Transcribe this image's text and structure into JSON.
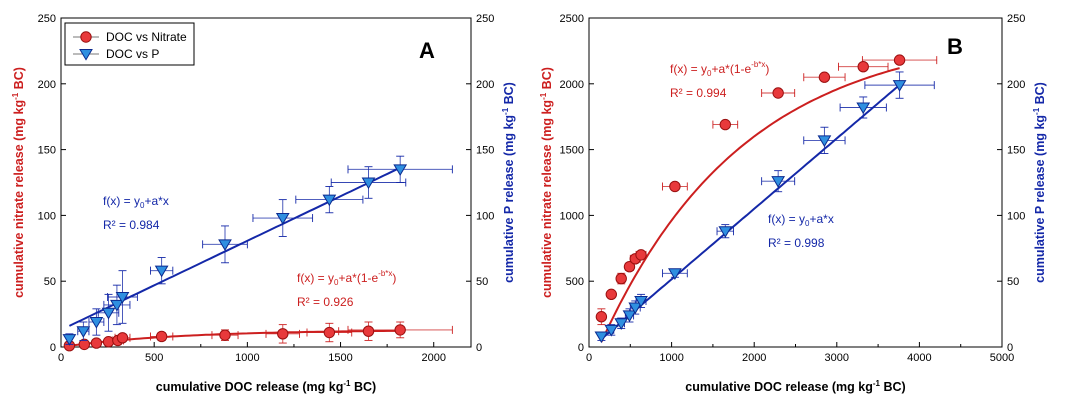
{
  "colors": {
    "nitrate": "#e8393b",
    "nitrate_edge": "#9a1010",
    "nitrate_line": "#cc1f1f",
    "p": "#2f8fe0",
    "p_edge": "#0b2a8f",
    "p_line": "#1428a8",
    "axis": "#000000",
    "errbar": "#4a4a4a"
  },
  "chart_data": [
    {
      "type": "scatter",
      "panel_label": "A",
      "xlabel": {
        "main": "cumulative DOC release (mg kg",
        "sup": "-1",
        "tail": " BC)"
      },
      "ylabel_left": {
        "main": "cumulative nitrate release (mg kg",
        "sup": "-1",
        "tail": " BC)"
      },
      "ylabel_right": {
        "main": "cumulative P release (mg kg",
        "sup": "-1",
        "tail": " BC)"
      },
      "xlim": [
        0,
        2200
      ],
      "ylim_left": [
        0,
        250
      ],
      "ylim_right": [
        0,
        250
      ],
      "xticks": [
        0,
        500,
        1000,
        1500,
        2000
      ],
      "yticks_left": [
        0,
        50,
        100,
        150,
        200,
        250
      ],
      "yticks_right": [
        0,
        50,
        100,
        150,
        200,
        250
      ],
      "grid": false,
      "legend_position": "top-left",
      "legend": [
        "DOC vs Nitrate",
        "DOC vs P"
      ],
      "series": [
        {
          "name": "DOC vs Nitrate",
          "axis": "left",
          "marker": "circle",
          "points": [
            {
              "x": 45,
              "y": 1,
              "xerr": 0,
              "yerr": 0
            },
            {
              "x": 125,
              "y": 2,
              "xerr": 0,
              "yerr": 0
            },
            {
              "x": 190,
              "y": 3,
              "xerr": 0,
              "yerr": 0
            },
            {
              "x": 255,
              "y": 4,
              "xerr": 0,
              "yerr": 0
            },
            {
              "x": 305,
              "y": 5,
              "xerr": 30,
              "yerr": 0
            },
            {
              "x": 330,
              "y": 7,
              "xerr": 40,
              "yerr": 0
            },
            {
              "x": 540,
              "y": 8,
              "xerr": 60,
              "yerr": 3
            },
            {
              "x": 880,
              "y": 9,
              "xerr": 70,
              "yerr": 4
            },
            {
              "x": 1190,
              "y": 10,
              "xerr": 90,
              "yerr": 7
            },
            {
              "x": 1440,
              "y": 11,
              "xerr": 120,
              "yerr": 7
            },
            {
              "x": 1650,
              "y": 12,
              "xerr": 160,
              "yerr": 7
            },
            {
              "x": 1820,
              "y": 13,
              "xerr": 280,
              "yerr": 6
            }
          ],
          "fit": {
            "equation": "f(x) = y₀+a*(1-e⁻ᵇ*ˣ)",
            "eq_main": "f(x) = y",
            "eq_sub": "0",
            "eq_mid": "+a*(1-e",
            "eq_sup": "-b*x",
            "eq_end": ")",
            "r2": "R² = 0.926",
            "y0": 0,
            "a": 13,
            "b": 0.0016
          }
        },
        {
          "name": "DOC vs P",
          "axis": "right",
          "marker": "triangle-down",
          "points": [
            {
              "x": 45,
              "y": 6,
              "xerr": 0,
              "yerr": 4
            },
            {
              "x": 120,
              "y": 12,
              "xerr": 30,
              "yerr": 7
            },
            {
              "x": 190,
              "y": 19,
              "xerr": 40,
              "yerr": 10
            },
            {
              "x": 255,
              "y": 26,
              "xerr": 55,
              "yerr": 14
            },
            {
              "x": 300,
              "y": 32,
              "xerr": 70,
              "yerr": 15
            },
            {
              "x": 330,
              "y": 38,
              "xerr": 80,
              "yerr": 20
            },
            {
              "x": 540,
              "y": 58,
              "xerr": 60,
              "yerr": 10
            },
            {
              "x": 880,
              "y": 78,
              "xerr": 120,
              "yerr": 14
            },
            {
              "x": 1190,
              "y": 98,
              "xerr": 160,
              "yerr": 14
            },
            {
              "x": 1440,
              "y": 112,
              "xerr": 180,
              "yerr": 10
            },
            {
              "x": 1650,
              "y": 125,
              "xerr": 200,
              "yerr": 12
            },
            {
              "x": 1820,
              "y": 135,
              "xerr": 280,
              "yerr": 10
            }
          ],
          "fit": {
            "equation": "f(x) = y₀+a*x",
            "eq_main": "f(x) = y",
            "eq_sub": "0",
            "eq_end": "+a*x",
            "r2": "R² = 0.984",
            "y0": 13,
            "a": 0.0677
          }
        }
      ]
    },
    {
      "type": "scatter",
      "panel_label": "B",
      "xlabel": {
        "main": "cumulative DOC release (mg kg",
        "sup": "-1",
        "tail": " BC)"
      },
      "ylabel_left": {
        "main": "cumulative nitrate release (mg kg",
        "sup": "-1",
        "tail": " BC)"
      },
      "ylabel_right": {
        "main": "cumulative P release (mg kg",
        "sup": "-1",
        "tail": " BC)"
      },
      "xlim": [
        0,
        5000
      ],
      "ylim_left": [
        0,
        2500
      ],
      "ylim_right": [
        0,
        250
      ],
      "xticks": [
        0,
        1000,
        2000,
        3000,
        4000,
        5000
      ],
      "yticks_left": [
        0,
        500,
        1000,
        1500,
        2000,
        2500
      ],
      "yticks_right": [
        0,
        50,
        100,
        150,
        200,
        250
      ],
      "grid": false,
      "series": [
        {
          "name": "DOC vs Nitrate",
          "axis": "left",
          "marker": "circle",
          "points": [
            {
              "x": 150,
              "y": 230,
              "xerr": 0,
              "yerr": 60
            },
            {
              "x": 270,
              "y": 400,
              "xerr": 40,
              "yerr": 0
            },
            {
              "x": 390,
              "y": 520,
              "xerr": 50,
              "yerr": 40
            },
            {
              "x": 490,
              "y": 610,
              "xerr": 50,
              "yerr": 0
            },
            {
              "x": 560,
              "y": 670,
              "xerr": 60,
              "yerr": 0
            },
            {
              "x": 630,
              "y": 700,
              "xerr": 60,
              "yerr": 0
            },
            {
              "x": 1040,
              "y": 1220,
              "xerr": 150,
              "yerr": 0
            },
            {
              "x": 1650,
              "y": 1690,
              "xerr": 150,
              "yerr": 0
            },
            {
              "x": 2290,
              "y": 1930,
              "xerr": 200,
              "yerr": 0
            },
            {
              "x": 2850,
              "y": 2050,
              "xerr": 250,
              "yerr": 0
            },
            {
              "x": 3320,
              "y": 2130,
              "xerr": 300,
              "yerr": 0
            },
            {
              "x": 3760,
              "y": 2180,
              "xerr": 450,
              "yerr": 0
            }
          ],
          "fit": {
            "equation": "f(x) = y₀+a*(1-e⁻ᵇ*ˣ)",
            "eq_main": "f(x) = y",
            "eq_sub": "0",
            "eq_mid": "+a*(1-e",
            "eq_sup": "-b*x",
            "eq_end": ")",
            "r2": "R² = 0.994",
            "y0": -178,
            "a": 2590,
            "b": 0.00058
          }
        },
        {
          "name": "DOC vs P",
          "axis": "right",
          "marker": "triangle-down",
          "points": [
            {
              "x": 150,
              "y": 8,
              "xerr": 0,
              "yerr": 3
            },
            {
              "x": 270,
              "y": 13,
              "xerr": 30,
              "yerr": 4
            },
            {
              "x": 390,
              "y": 18,
              "xerr": 40,
              "yerr": 4
            },
            {
              "x": 490,
              "y": 24,
              "xerr": 50,
              "yerr": 5
            },
            {
              "x": 560,
              "y": 30,
              "xerr": 60,
              "yerr": 5
            },
            {
              "x": 630,
              "y": 35,
              "xerr": 60,
              "yerr": 5
            },
            {
              "x": 1040,
              "y": 56,
              "xerr": 150,
              "yerr": 3
            },
            {
              "x": 1650,
              "y": 88,
              "xerr": 100,
              "yerr": 5
            },
            {
              "x": 2290,
              "y": 126,
              "xerr": 200,
              "yerr": 8
            },
            {
              "x": 2850,
              "y": 157,
              "xerr": 250,
              "yerr": 10
            },
            {
              "x": 3320,
              "y": 182,
              "xerr": 280,
              "yerr": 8
            },
            {
              "x": 3760,
              "y": 199,
              "xerr": 420,
              "yerr": 10
            }
          ],
          "fit": {
            "equation": "f(x) = y₀+a*x",
            "eq_main": "f(x) = y",
            "eq_sub": "0",
            "eq_end": "+a*x",
            "r2": "R² = 0.998",
            "y0": -2,
            "a": 0.0535
          }
        }
      ]
    }
  ]
}
